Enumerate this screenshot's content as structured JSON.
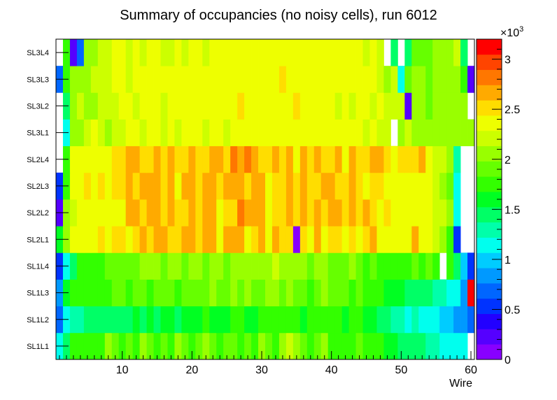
{
  "chart_data": {
    "type": "heatmap",
    "title": "Summary of occupancies (no noisy cells), run 6012",
    "xlabel": "Wire",
    "ylabel": "",
    "xlim": [
      0.5,
      60.5
    ],
    "x_ticks": [
      10,
      20,
      30,
      40,
      50,
      60
    ],
    "y_categories": [
      "SL1L1",
      "SL1L2",
      "SL1L3",
      "SL1L4",
      "SL2L1",
      "SL2L2",
      "SL2L3",
      "SL2L4",
      "SL3L1",
      "SL3L2",
      "SL3L3",
      "SL3L4"
    ],
    "colorbar": {
      "range": [
        0,
        3200
      ],
      "ticks": [
        0,
        500,
        1000,
        1500,
        2000,
        2500,
        3000
      ],
      "tick_labels": [
        "0",
        "0.5",
        "1",
        "1.5",
        "2",
        "2.5",
        "3"
      ],
      "multiplier_label": "×10",
      "multiplier_exp": "3",
      "colors": [
        "#8800ff",
        "#5500ff",
        "#2200ff",
        "#0033ff",
        "#0066ff",
        "#0099ff",
        "#00ccff",
        "#00ffee",
        "#00ffaa",
        "#00ff66",
        "#00ff22",
        "#33ff00",
        "#66ff00",
        "#99ff00",
        "#ccff00",
        "#eeff00",
        "#ffdd00",
        "#ffaa00",
        "#ff7700",
        "#ff4400",
        "#ff0000"
      ]
    },
    "rows": [
      {
        "name": "SL1L1",
        "values": [
          1200,
          1500,
          1800,
          1800,
          1800,
          1700,
          1800,
          2000,
          1900,
          1700,
          1900,
          1800,
          2000,
          1900,
          1700,
          1900,
          1800,
          2000,
          1900,
          1800,
          1900,
          2000,
          1900,
          1800,
          1900,
          1900,
          1800,
          1900,
          1800,
          2000,
          1900,
          1700,
          2000,
          2200,
          2000,
          1900,
          1800,
          1900,
          2000,
          1800,
          1800,
          1700,
          1800,
          1900,
          1800,
          1700,
          1700,
          1600,
          1600,
          1500,
          1500,
          1400,
          1400,
          1300,
          1300,
          1200,
          1200,
          1100,
          1200,
          0
        ]
      },
      {
        "name": "SL1L2",
        "values": [
          700,
          1200,
          1300,
          1300,
          1400,
          1400,
          1400,
          1500,
          1500,
          1500,
          1500,
          1600,
          1500,
          1600,
          1500,
          1600,
          1600,
          1500,
          1600,
          1600,
          1600,
          1700,
          1600,
          1600,
          1600,
          1700,
          1700,
          1600,
          1600,
          1700,
          1700,
          1700,
          1700,
          1700,
          1700,
          1600,
          1700,
          1700,
          1800,
          1700,
          1700,
          1600,
          1700,
          1700,
          1600,
          1600,
          1500,
          1400,
          1300,
          1300,
          1200,
          1300,
          1200,
          1100,
          1100,
          1000,
          1000,
          900,
          800,
          700
        ]
      },
      {
        "name": "SL1L3",
        "values": [
          900,
          1600,
          1700,
          1800,
          1800,
          1800,
          1800,
          1800,
          1900,
          1900,
          1800,
          1900,
          1900,
          1800,
          1900,
          1900,
          1900,
          1800,
          1900,
          1900,
          1900,
          1900,
          2000,
          1900,
          1900,
          2000,
          1900,
          2000,
          1900,
          1900,
          2000,
          2000,
          1900,
          2000,
          1900,
          1900,
          1800,
          1900,
          2000,
          1900,
          1900,
          1900,
          1800,
          1900,
          1800,
          1800,
          1700,
          1600,
          1600,
          1600,
          1500,
          1400,
          1400,
          1400,
          1300,
          1300,
          1200,
          1100,
          900,
          3100
        ]
      },
      {
        "name": "SL1L4",
        "values": [
          500,
          1200,
          1500,
          1700,
          1700,
          1800,
          1800,
          1900,
          1900,
          1900,
          1900,
          1900,
          2000,
          2000,
          2000,
          1900,
          2000,
          2000,
          1900,
          2000,
          2000,
          1900,
          2000,
          2000,
          1900,
          2000,
          2000,
          2100,
          2000,
          2000,
          2100,
          2200,
          2000,
          2100,
          2000,
          2100,
          1900,
          2000,
          2000,
          1900,
          1900,
          1900,
          2000,
          1900,
          1800,
          1900,
          1700,
          1800,
          1800,
          1700,
          1800,
          1900,
          1800,
          1900,
          1700,
          0,
          1800,
          1500,
          1000,
          500
        ]
      },
      {
        "name": "SL2L1",
        "values": [
          1600,
          2000,
          2300,
          2400,
          2400,
          2400,
          2500,
          2400,
          2500,
          2500,
          2400,
          2500,
          2600,
          2500,
          2600,
          2600,
          2500,
          2500,
          2600,
          2600,
          2500,
          2600,
          2600,
          2400,
          2600,
          2700,
          2600,
          2400,
          2500,
          2700,
          2400,
          2600,
          2500,
          2500,
          100,
          2500,
          2400,
          2600,
          2400,
          2500,
          2500,
          2400,
          2500,
          2400,
          2500,
          2600,
          2400,
          2400,
          2300,
          2400,
          2400,
          2600,
          2400,
          2400,
          2200,
          2100,
          1800,
          500,
          0,
          0
        ]
      },
      {
        "name": "SL2L2",
        "values": [
          300,
          2000,
          2200,
          2400,
          2400,
          2400,
          2400,
          2400,
          2400,
          2400,
          2600,
          2600,
          2500,
          2600,
          2600,
          2500,
          2600,
          2500,
          2500,
          2600,
          2500,
          2600,
          2600,
          2400,
          2500,
          2500,
          2800,
          2600,
          2600,
          2700,
          2400,
          2500,
          2500,
          2600,
          2500,
          2600,
          2500,
          2600,
          2500,
          2700,
          2600,
          2500,
          2600,
          2500,
          2600,
          2500,
          2400,
          2500,
          2300,
          2400,
          2400,
          2400,
          2300,
          2300,
          2200,
          2200,
          2000,
          1200,
          0,
          0
        ]
      },
      {
        "name": "SL2L3",
        "values": [
          500,
          1800,
          2300,
          2400,
          2500,
          2400,
          2500,
          2400,
          2500,
          2500,
          2600,
          2500,
          2600,
          2600,
          2600,
          2500,
          2600,
          2400,
          2600,
          2600,
          2500,
          2600,
          2600,
          2500,
          2600,
          2600,
          2700,
          2500,
          2600,
          2600,
          2400,
          2500,
          2500,
          2600,
          2500,
          2600,
          2500,
          2500,
          2600,
          2600,
          2500,
          2500,
          2600,
          2500,
          2400,
          2500,
          2500,
          2400,
          2400,
          2400,
          2400,
          2300,
          2300,
          2300,
          2200,
          2100,
          1900,
          1200,
          0,
          0
        ]
      },
      {
        "name": "SL2L4",
        "values": [
          0,
          1800,
          2300,
          2400,
          2400,
          2400,
          2400,
          2400,
          2500,
          2500,
          2600,
          2600,
          2500,
          2500,
          2600,
          2500,
          2600,
          2500,
          2500,
          2600,
          2500,
          2500,
          2600,
          2600,
          2500,
          2800,
          2600,
          2800,
          2600,
          2500,
          2500,
          2600,
          2500,
          2600,
          2400,
          2600,
          2500,
          2600,
          2500,
          2500,
          2600,
          2400,
          2600,
          2500,
          2500,
          2600,
          2600,
          2500,
          2400,
          2500,
          2500,
          2500,
          2600,
          2400,
          2200,
          2200,
          2100,
          1300,
          0,
          0
        ]
      },
      {
        "name": "SL3L1",
        "values": [
          0,
          1200,
          2000,
          2100,
          2200,
          2300,
          2200,
          2100,
          2200,
          2200,
          2300,
          2300,
          2200,
          2300,
          2300,
          2200,
          2300,
          2200,
          2300,
          2300,
          2300,
          2200,
          2300,
          2300,
          2200,
          2300,
          2400,
          2300,
          2300,
          2400,
          2300,
          2300,
          2400,
          2300,
          2400,
          2300,
          2400,
          2300,
          2400,
          2300,
          2300,
          2400,
          2300,
          2300,
          2200,
          2300,
          2200,
          2200,
          0,
          2100,
          2200,
          2100,
          2100,
          2100,
          2000,
          2000,
          2000,
          2100,
          2000,
          2000
        ]
      },
      {
        "name": "SL3L2",
        "values": [
          0,
          1400,
          2100,
          2200,
          2100,
          2100,
          2200,
          2200,
          2200,
          2300,
          2300,
          2200,
          2300,
          2300,
          2400,
          2200,
          2300,
          2300,
          2400,
          2300,
          2400,
          2300,
          2300,
          2400,
          2300,
          2400,
          2500,
          2300,
          2400,
          2400,
          2300,
          2400,
          2300,
          2400,
          2500,
          2300,
          2400,
          2300,
          2400,
          2300,
          2200,
          2300,
          2200,
          2300,
          2400,
          2200,
          2300,
          2200,
          2200,
          2200,
          300,
          2000,
          2000,
          1900,
          2000,
          2100,
          2000,
          2000,
          2100,
          0
        ]
      },
      {
        "name": "SL3L3",
        "values": [
          700,
          1700,
          2000,
          2100,
          2100,
          2200,
          2200,
          2200,
          2300,
          2300,
          2200,
          2300,
          2300,
          2400,
          2300,
          2300,
          2400,
          2300,
          2300,
          2300,
          2400,
          2300,
          2400,
          2300,
          2400,
          2400,
          2300,
          2400,
          2300,
          2400,
          2300,
          2400,
          2500,
          2400,
          2300,
          2400,
          2300,
          2300,
          2400,
          2400,
          2300,
          2300,
          2400,
          2300,
          2300,
          2300,
          2200,
          2100,
          2200,
          1100,
          1900,
          2000,
          2100,
          1900,
          2000,
          2000,
          2100,
          2000,
          1800,
          300
        ]
      },
      {
        "name": "SL3L4",
        "values": [
          0,
          1700,
          300,
          700,
          2100,
          2100,
          2200,
          2200,
          2300,
          2300,
          2200,
          2300,
          2200,
          2300,
          2300,
          2200,
          2200,
          2300,
          2200,
          2300,
          2300,
          2200,
          2400,
          2300,
          2400,
          2300,
          2400,
          2400,
          2300,
          2400,
          2400,
          2300,
          2400,
          2300,
          2400,
          2300,
          2400,
          2300,
          2400,
          2300,
          2300,
          2300,
          2400,
          2300,
          2200,
          2300,
          2200,
          0,
          1400,
          0,
          1500,
          1900,
          1900,
          1900,
          2000,
          2000,
          2100,
          2200,
          1500,
          0
        ]
      }
    ]
  }
}
